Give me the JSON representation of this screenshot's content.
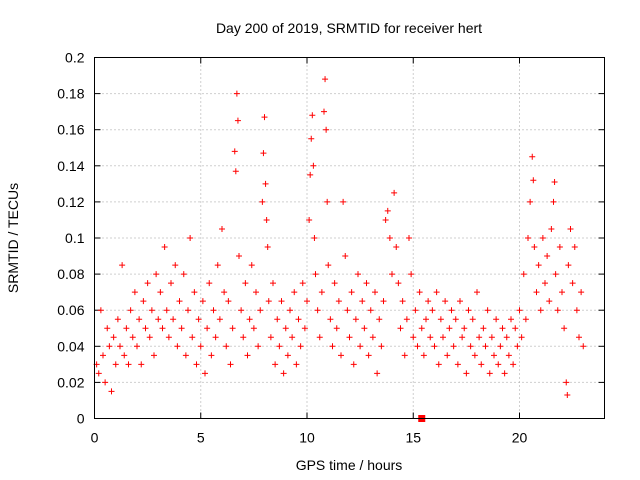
{
  "chart_data": {
    "type": "scatter",
    "title": "Day 200 of 2019, SRMTID for receiver hert",
    "xlabel": "GPS time / hours",
    "ylabel": "SRMTID / TECUs",
    "xlim": [
      0,
      24
    ],
    "ylim": [
      0,
      0.2
    ],
    "x_ticks": [
      0,
      5,
      10,
      15,
      20
    ],
    "x_tick_labels": [
      "0",
      "5",
      "10",
      "15",
      "20"
    ],
    "y_ticks": [
      0,
      0.02,
      0.04,
      0.06,
      0.08,
      0.1,
      0.12,
      0.14,
      0.16,
      0.18,
      0.2
    ],
    "y_tick_labels": [
      "0",
      "0.02",
      "0.04",
      "0.06",
      "0.08",
      "0.1",
      "0.12",
      "0.14",
      "0.16",
      "0.18",
      "0.2"
    ],
    "grid": true,
    "marker_color": "#ff0000",
    "marker": "plus",
    "special_point": {
      "x": 15.4,
      "y": 0,
      "marker": "square"
    },
    "series": [
      {
        "name": "SRMTID",
        "points": [
          [
            0.1,
            0.03
          ],
          [
            0.2,
            0.025
          ],
          [
            0.3,
            0.06
          ],
          [
            0.4,
            0.035
          ],
          [
            0.5,
            0.02
          ],
          [
            0.6,
            0.05
          ],
          [
            0.7,
            0.04
          ],
          [
            0.8,
            0.015
          ],
          [
            0.9,
            0.045
          ],
          [
            1.0,
            0.03
          ],
          [
            1.1,
            0.055
          ],
          [
            1.2,
            0.04
          ],
          [
            1.3,
            0.085
          ],
          [
            1.4,
            0.035
          ],
          [
            1.5,
            0.05
          ],
          [
            1.6,
            0.03
          ],
          [
            1.7,
            0.06
          ],
          [
            1.8,
            0.045
          ],
          [
            1.9,
            0.07
          ],
          [
            2.0,
            0.04
          ],
          [
            2.1,
            0.055
          ],
          [
            2.2,
            0.03
          ],
          [
            2.3,
            0.065
          ],
          [
            2.4,
            0.05
          ],
          [
            2.5,
            0.075
          ],
          [
            2.6,
            0.045
          ],
          [
            2.7,
            0.06
          ],
          [
            2.8,
            0.035
          ],
          [
            2.9,
            0.08
          ],
          [
            3.0,
            0.055
          ],
          [
            3.1,
            0.07
          ],
          [
            3.2,
            0.05
          ],
          [
            3.3,
            0.095
          ],
          [
            3.4,
            0.06
          ],
          [
            3.5,
            0.045
          ],
          [
            3.6,
            0.075
          ],
          [
            3.7,
            0.055
          ],
          [
            3.8,
            0.085
          ],
          [
            3.9,
            0.04
          ],
          [
            4.0,
            0.065
          ],
          [
            4.1,
            0.05
          ],
          [
            4.2,
            0.08
          ],
          [
            4.3,
            0.035
          ],
          [
            4.4,
            0.06
          ],
          [
            4.5,
            0.1
          ],
          [
            4.6,
            0.045
          ],
          [
            4.7,
            0.07
          ],
          [
            4.8,
            0.03
          ],
          [
            4.9,
            0.055
          ],
          [
            5.0,
            0.04
          ],
          [
            5.1,
            0.065
          ],
          [
            5.2,
            0.025
          ],
          [
            5.3,
            0.05
          ],
          [
            5.4,
            0.075
          ],
          [
            5.5,
            0.035
          ],
          [
            5.6,
            0.06
          ],
          [
            5.7,
            0.045
          ],
          [
            5.8,
            0.085
          ],
          [
            5.9,
            0.055
          ],
          [
            6.0,
            0.105
          ],
          [
            6.1,
            0.07
          ],
          [
            6.2,
            0.04
          ],
          [
            6.3,
            0.065
          ],
          [
            6.4,
            0.03
          ],
          [
            6.5,
            0.05
          ],
          [
            6.6,
            0.148
          ],
          [
            6.65,
            0.137
          ],
          [
            6.7,
            0.18
          ],
          [
            6.75,
            0.165
          ],
          [
            6.8,
            0.09
          ],
          [
            6.9,
            0.06
          ],
          [
            7.0,
            0.045
          ],
          [
            7.1,
            0.075
          ],
          [
            7.2,
            0.035
          ],
          [
            7.3,
            0.055
          ],
          [
            7.4,
            0.085
          ],
          [
            7.5,
            0.05
          ],
          [
            7.6,
            0.07
          ],
          [
            7.7,
            0.04
          ],
          [
            7.8,
            0.06
          ],
          [
            7.9,
            0.12
          ],
          [
            7.95,
            0.147
          ],
          [
            8.0,
            0.167
          ],
          [
            8.05,
            0.13
          ],
          [
            8.1,
            0.11
          ],
          [
            8.15,
            0.095
          ],
          [
            8.2,
            0.065
          ],
          [
            8.3,
            0.045
          ],
          [
            8.4,
            0.075
          ],
          [
            8.5,
            0.03
          ],
          [
            8.6,
            0.055
          ],
          [
            8.7,
            0.04
          ],
          [
            8.8,
            0.065
          ],
          [
            8.9,
            0.025
          ],
          [
            9.0,
            0.05
          ],
          [
            9.1,
            0.035
          ],
          [
            9.2,
            0.06
          ],
          [
            9.3,
            0.045
          ],
          [
            9.4,
            0.07
          ],
          [
            9.5,
            0.03
          ],
          [
            9.6,
            0.055
          ],
          [
            9.7,
            0.04
          ],
          [
            9.8,
            0.075
          ],
          [
            9.9,
            0.05
          ],
          [
            10.0,
            0.065
          ],
          [
            10.1,
            0.11
          ],
          [
            10.15,
            0.135
          ],
          [
            10.2,
            0.155
          ],
          [
            10.25,
            0.168
          ],
          [
            10.3,
            0.14
          ],
          [
            10.35,
            0.1
          ],
          [
            10.4,
            0.08
          ],
          [
            10.5,
            0.06
          ],
          [
            10.6,
            0.045
          ],
          [
            10.7,
            0.07
          ],
          [
            10.8,
            0.17
          ],
          [
            10.85,
            0.188
          ],
          [
            10.9,
            0.16
          ],
          [
            10.95,
            0.12
          ],
          [
            11.0,
            0.085
          ],
          [
            11.1,
            0.055
          ],
          [
            11.2,
            0.04
          ],
          [
            11.3,
            0.075
          ],
          [
            11.4,
            0.05
          ],
          [
            11.5,
            0.065
          ],
          [
            11.6,
            0.035
          ],
          [
            11.7,
            0.12
          ],
          [
            11.8,
            0.09
          ],
          [
            11.9,
            0.06
          ],
          [
            12.0,
            0.045
          ],
          [
            12.1,
            0.07
          ],
          [
            12.2,
            0.03
          ],
          [
            12.3,
            0.055
          ],
          [
            12.4,
            0.08
          ],
          [
            12.5,
            0.04
          ],
          [
            12.6,
            0.065
          ],
          [
            12.7,
            0.05
          ],
          [
            12.8,
            0.075
          ],
          [
            12.9,
            0.035
          ],
          [
            13.0,
            0.06
          ],
          [
            13.1,
            0.045
          ],
          [
            13.2,
            0.07
          ],
          [
            13.3,
            0.025
          ],
          [
            13.4,
            0.055
          ],
          [
            13.5,
            0.04
          ],
          [
            13.6,
            0.065
          ],
          [
            13.7,
            0.11
          ],
          [
            13.8,
            0.115
          ],
          [
            13.9,
            0.1
          ],
          [
            14.0,
            0.08
          ],
          [
            14.1,
            0.125
          ],
          [
            14.2,
            0.095
          ],
          [
            14.3,
            0.075
          ],
          [
            14.4,
            0.05
          ],
          [
            14.5,
            0.065
          ],
          [
            14.6,
            0.035
          ],
          [
            14.7,
            0.055
          ],
          [
            14.8,
            0.1
          ],
          [
            14.9,
            0.08
          ],
          [
            15.0,
            0.045
          ],
          [
            15.1,
            0.06
          ],
          [
            15.2,
            0.04
          ],
          [
            15.3,
            0.07
          ],
          [
            15.4,
            0.05
          ],
          [
            15.5,
            0.035
          ],
          [
            15.6,
            0.055
          ],
          [
            15.7,
            0.065
          ],
          [
            15.8,
            0.045
          ],
          [
            15.9,
            0.06
          ],
          [
            16.0,
            0.04
          ],
          [
            16.1,
            0.07
          ],
          [
            16.2,
            0.03
          ],
          [
            16.3,
            0.055
          ],
          [
            16.4,
            0.045
          ],
          [
            16.5,
            0.065
          ],
          [
            16.6,
            0.035
          ],
          [
            16.7,
            0.05
          ],
          [
            16.8,
            0.06
          ],
          [
            16.9,
            0.04
          ],
          [
            17.0,
            0.055
          ],
          [
            17.1,
            0.03
          ],
          [
            17.2,
            0.065
          ],
          [
            17.3,
            0.045
          ],
          [
            17.4,
            0.05
          ],
          [
            17.5,
            0.025
          ],
          [
            17.6,
            0.06
          ],
          [
            17.7,
            0.04
          ],
          [
            17.8,
            0.055
          ],
          [
            17.9,
            0.035
          ],
          [
            18.0,
            0.07
          ],
          [
            18.1,
            0.045
          ],
          [
            18.2,
            0.03
          ],
          [
            18.3,
            0.05
          ],
          [
            18.4,
            0.04
          ],
          [
            18.5,
            0.06
          ],
          [
            18.6,
            0.025
          ],
          [
            18.7,
            0.045
          ],
          [
            18.8,
            0.035
          ],
          [
            18.9,
            0.055
          ],
          [
            19.0,
            0.03
          ],
          [
            19.1,
            0.04
          ],
          [
            19.2,
            0.05
          ],
          [
            19.3,
            0.025
          ],
          [
            19.4,
            0.045
          ],
          [
            19.5,
            0.035
          ],
          [
            19.6,
            0.055
          ],
          [
            19.7,
            0.03
          ],
          [
            19.8,
            0.05
          ],
          [
            19.9,
            0.04
          ],
          [
            20.0,
            0.06
          ],
          [
            20.1,
            0.045
          ],
          [
            20.2,
            0.08
          ],
          [
            20.3,
            0.055
          ],
          [
            20.4,
            0.1
          ],
          [
            20.5,
            0.12
          ],
          [
            20.6,
            0.145
          ],
          [
            20.65,
            0.132
          ],
          [
            20.7,
            0.095
          ],
          [
            20.8,
            0.07
          ],
          [
            20.9,
            0.085
          ],
          [
            21.0,
            0.06
          ],
          [
            21.1,
            0.1
          ],
          [
            21.2,
            0.075
          ],
          [
            21.3,
            0.09
          ],
          [
            21.4,
            0.065
          ],
          [
            21.5,
            0.105
          ],
          [
            21.6,
            0.12
          ],
          [
            21.65,
            0.131
          ],
          [
            21.7,
            0.08
          ],
          [
            21.8,
            0.06
          ],
          [
            21.9,
            0.095
          ],
          [
            22.0,
            0.07
          ],
          [
            22.1,
            0.05
          ],
          [
            22.2,
            0.02
          ],
          [
            22.25,
            0.013
          ],
          [
            22.3,
            0.085
          ],
          [
            22.4,
            0.105
          ],
          [
            22.5,
            0.075
          ],
          [
            22.6,
            0.095
          ],
          [
            22.7,
            0.06
          ],
          [
            22.8,
            0.045
          ],
          [
            22.9,
            0.07
          ],
          [
            23.0,
            0.04
          ]
        ]
      }
    ]
  }
}
